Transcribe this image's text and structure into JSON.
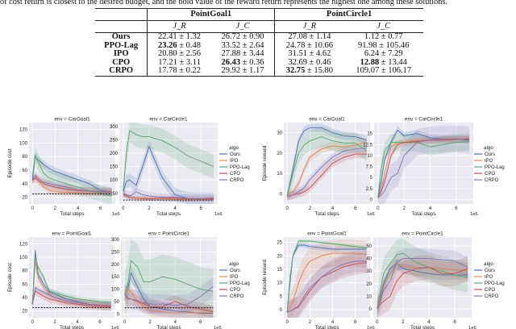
{
  "caption": "of cost return is closest to the desired budget, and the bold value of the reward return represents the highest one among these solutions.",
  "table": {
    "envs": [
      "PointGoal1",
      "PointCircle1"
    ],
    "metrics": [
      "J_R",
      "J_C",
      "J_R",
      "J_C"
    ],
    "rows": [
      {
        "algo": "Ours",
        "cells": [
          {
            "v": "22.41",
            "pm": "± 1.32",
            "bold": false
          },
          {
            "v": "26.72",
            "pm": "± 0.90",
            "bold": false
          },
          {
            "v": "27.08",
            "pm": "± 1.14",
            "bold": false
          },
          {
            "v": "1.12",
            "pm": "± 0.77",
            "bold": false
          }
        ]
      },
      {
        "algo": "PPO-Lag",
        "cells": [
          {
            "v": "23.26",
            "pm": "± 0.48",
            "bold": true
          },
          {
            "v": "33.52",
            "pm": "± 2.64",
            "bold": false
          },
          {
            "v": "24.78",
            "pm": "± 10.66",
            "bold": false
          },
          {
            "v": "91.98",
            "pm": "± 105.46",
            "bold": false
          }
        ]
      },
      {
        "algo": "IPO",
        "cells": [
          {
            "v": "20.80",
            "pm": "± 2.56",
            "bold": false
          },
          {
            "v": "27.88",
            "pm": "± 3.44",
            "bold": false
          },
          {
            "v": "31.51",
            "pm": "± 4.62",
            "bold": false
          },
          {
            "v": "6.24",
            "pm": "± 7.29",
            "bold": false
          }
        ]
      },
      {
        "algo": "CPO",
        "cells": [
          {
            "v": "17.21",
            "pm": "± 3.11",
            "bold": false
          },
          {
            "v": "26.43",
            "pm": "± 0.36",
            "bold": true
          },
          {
            "v": "32.69",
            "pm": "± 0.46",
            "bold": false
          },
          {
            "v": "12.88",
            "pm": "± 13.44",
            "bold": true
          }
        ]
      },
      {
        "algo": "CRPO",
        "cells": [
          {
            "v": "17.78",
            "pm": "± 0.22",
            "bold": false
          },
          {
            "v": "29.92",
            "pm": "± 1.17",
            "bold": false
          },
          {
            "v": "32.75",
            "pm": "± 15.80",
            "bold": true
          },
          {
            "v": "109.07",
            "pm": "± 106.17",
            "bold": false
          }
        ]
      }
    ]
  },
  "legend": {
    "title": "algo",
    "entries": [
      "Ours",
      "IPO",
      "PPO-Lag",
      "CPO",
      "CRPO"
    ]
  },
  "colors": {
    "Ours": "#4c72b0",
    "IPO": "#dd8452",
    "PPO-Lag": "#55a868",
    "CPO": "#c44e52",
    "CRPO": "#8172b3",
    "background": "#eaeaf2",
    "budget": "#000000"
  },
  "chart_data": [
    {
      "type": "line",
      "title": "env = CarGoal1",
      "xlabel": "Total steps",
      "ylabel": "Episode cost",
      "x_scale_label": "1e6",
      "xlim": [
        -0.3,
        7.3
      ],
      "ylim": [
        10,
        130
      ],
      "xticks": [
        0,
        2,
        4,
        6
      ],
      "yticks": [
        20,
        40,
        60,
        80,
        100,
        120
      ],
      "grid": true,
      "budget": 25,
      "x": [
        0,
        0.25,
        0.5,
        1,
        1.5,
        2,
        3,
        4,
        5,
        6,
        7
      ],
      "series": [
        {
          "name": "Ours",
          "values": [
            45,
            80,
            75,
            68,
            62,
            58,
            52,
            46,
            40,
            30,
            27
          ],
          "band": 6
        },
        {
          "name": "IPO",
          "values": [
            45,
            50,
            45,
            35,
            30,
            28,
            27,
            27,
            27,
            27,
            27
          ],
          "band": 5
        },
        {
          "name": "PPO-Lag",
          "values": [
            50,
            82,
            72,
            55,
            48,
            45,
            40,
            35,
            30,
            26,
            22
          ],
          "band": 12
        },
        {
          "name": "CPO",
          "values": [
            45,
            48,
            45,
            40,
            37,
            35,
            32,
            30,
            29,
            28,
            28
          ],
          "band": 6
        },
        {
          "name": "CRPO",
          "values": [
            45,
            52,
            48,
            42,
            40,
            38,
            35,
            31,
            29,
            28,
            27
          ],
          "band": 5
        }
      ]
    },
    {
      "type": "line",
      "title": "env = CarCircle1",
      "xlabel": "Total steps",
      "ylabel": "",
      "x_scale_label": "1e6",
      "xlim": [
        -0.3,
        7.3
      ],
      "ylim": [
        10,
        315
      ],
      "xticks": [
        0,
        2,
        4,
        6
      ],
      "yticks": [
        50,
        100,
        150,
        200,
        250,
        300
      ],
      "grid": true,
      "budget": 25,
      "x": [
        0,
        0.25,
        0.5,
        1,
        1.5,
        2,
        3,
        4,
        5,
        6,
        7
      ],
      "series": [
        {
          "name": "Ours",
          "values": [
            55,
            95,
            100,
            80,
            150,
            225,
            110,
            45,
            30,
            28,
            28
          ],
          "band": 25
        },
        {
          "name": "IPO",
          "values": [
            50,
            40,
            35,
            32,
            32,
            30,
            30,
            28,
            28,
            27,
            27
          ],
          "band": 8
        },
        {
          "name": "PPO-Lag",
          "values": [
            60,
            200,
            285,
            270,
            262,
            262,
            248,
            222,
            190,
            170,
            150
          ],
          "band": 45
        },
        {
          "name": "CPO",
          "values": [
            45,
            40,
            35,
            32,
            30,
            30,
            32,
            32,
            30,
            30,
            32
          ],
          "band": 8
        },
        {
          "name": "CRPO",
          "values": [
            50,
            45,
            40,
            55,
            45,
            40,
            35,
            35,
            30,
            30,
            30
          ],
          "band": 15
        }
      ]
    },
    {
      "type": "line",
      "title": "env = CarGoal1",
      "xlabel": "Total steps",
      "ylabel": "Episode reward",
      "x_scale_label": "1e6",
      "xlim": [
        -0.3,
        7.3
      ],
      "ylim": [
        -5,
        35
      ],
      "xticks": [
        0,
        2,
        4,
        6
      ],
      "yticks": [
        0,
        10,
        20,
        30
      ],
      "grid": true,
      "x": [
        0,
        0.25,
        0.5,
        1,
        1.5,
        2,
        3,
        4,
        5,
        6,
        7
      ],
      "series": [
        {
          "name": "Ours",
          "values": [
            -1,
            5,
            12,
            26,
            31,
            32.5,
            32.5,
            30,
            28.5,
            28,
            26.5
          ],
          "band": 2
        },
        {
          "name": "IPO",
          "values": [
            -1,
            0,
            1,
            5,
            12,
            18,
            22,
            23.5,
            23,
            24,
            25.5
          ],
          "band": 2
        },
        {
          "name": "PPO-Lag",
          "values": [
            -1,
            4,
            10,
            20,
            24,
            26,
            28,
            26,
            25,
            25,
            21
          ],
          "band": 5
        },
        {
          "name": "CPO",
          "values": [
            -1,
            -1,
            -0.5,
            0,
            1,
            3,
            9,
            15,
            18,
            19.5,
            19.5
          ],
          "band": 2
        },
        {
          "name": "CRPO",
          "values": [
            -1,
            -1,
            -0.5,
            1,
            3,
            7,
            13,
            18,
            21,
            22,
            22.5
          ],
          "band": 2
        }
      ]
    },
    {
      "type": "line",
      "title": "env = CarCircle1",
      "xlabel": "Total steps",
      "ylabel": "",
      "x_scale_label": "1e6",
      "xlim": [
        -0.3,
        7.3
      ],
      "ylim": [
        -1,
        17.5
      ],
      "xticks": [
        0,
        2,
        4,
        6
      ],
      "yticks": [
        0,
        2.5,
        5,
        7.5,
        10,
        12.5,
        15
      ],
      "grid": true,
      "x": [
        0,
        0.25,
        0.5,
        1,
        1.5,
        2,
        3,
        4,
        5,
        6,
        7
      ],
      "series": [
        {
          "name": "Ours",
          "values": [
            0.5,
            4,
            9,
            13,
            15.8,
            14.5,
            15,
            14,
            13.8,
            13.8,
            13.5
          ],
          "band": 0.8
        },
        {
          "name": "IPO",
          "values": [
            0.5,
            2,
            6,
            12,
            13,
            13,
            13.5,
            13.5,
            13.8,
            13.8,
            13.8
          ],
          "band": 0.6
        },
        {
          "name": "PPO-Lag",
          "values": [
            0.5,
            7,
            11,
            13,
            13,
            13,
            13,
            12,
            12.5,
            13,
            13.2
          ],
          "band": 2
        },
        {
          "name": "CPO",
          "values": [
            0.5,
            2,
            4,
            10,
            12.5,
            13,
            13.2,
            13.5,
            13.5,
            13.7,
            13.8
          ],
          "band": 0.8
        },
        {
          "name": "CRPO",
          "values": [
            0.5,
            1,
            2,
            5,
            6,
            10,
            13,
            13.6,
            13.8,
            13.8,
            13.6
          ],
          "band": 3
        }
      ]
    },
    {
      "type": "line",
      "title": "env = PointGoal1",
      "xlabel": "Total steps",
      "ylabel": "Episode cost",
      "x_scale_label": "1e6",
      "xlim": [
        -0.3,
        7.3
      ],
      "ylim": [
        10,
        130
      ],
      "xticks": [
        0,
        2,
        4,
        6
      ],
      "yticks": [
        20,
        40,
        60,
        80,
        100,
        120
      ],
      "grid": true,
      "budget": 25,
      "x": [
        0,
        0.25,
        0.5,
        1,
        1.5,
        2,
        3,
        4,
        5,
        6,
        7
      ],
      "series": [
        {
          "name": "Ours",
          "values": [
            30,
            110,
            75,
            60,
            48,
            45,
            38,
            34,
            30,
            29,
            28
          ],
          "band": 5
        },
        {
          "name": "IPO",
          "values": [
            30,
            95,
            70,
            55,
            45,
            40,
            35,
            32,
            30,
            28,
            27
          ],
          "band": 6
        },
        {
          "name": "PPO-Lag",
          "values": [
            30,
            100,
            85,
            70,
            50,
            47,
            42,
            38,
            36,
            34,
            33
          ],
          "band": 4
        },
        {
          "name": "CPO",
          "values": [
            30,
            50,
            47,
            42,
            38,
            36,
            32,
            30,
            28,
            27,
            26
          ],
          "band": 6
        },
        {
          "name": "CRPO",
          "values": [
            30,
            55,
            52,
            48,
            44,
            40,
            35,
            32,
            30,
            29,
            28
          ],
          "band": 4
        }
      ]
    },
    {
      "type": "line",
      "title": "env = PointCircle1",
      "xlabel": "Total steps",
      "ylabel": "",
      "x_scale_label": "1e6",
      "xlim": [
        -0.3,
        7.3
      ],
      "ylim": [
        -15,
        310
      ],
      "xticks": [
        0,
        2,
        4,
        6
      ],
      "yticks": [
        0,
        50,
        100,
        150,
        200,
        250,
        300
      ],
      "grid": true,
      "budget": 25,
      "x": [
        0,
        0.25,
        0.5,
        1,
        1.5,
        2,
        3,
        4,
        5,
        6,
        7
      ],
      "series": [
        {
          "name": "Ours",
          "values": [
            80,
            100,
            165,
            110,
            60,
            30,
            20,
            12,
            8,
            3,
            2
          ],
          "band": 30
        },
        {
          "name": "IPO",
          "values": [
            80,
            100,
            90,
            50,
            30,
            15,
            8,
            5,
            5,
            5,
            8
          ],
          "band": 25
        },
        {
          "name": "PPO-Lag",
          "values": [
            80,
            120,
            215,
            190,
            130,
            130,
            150,
            140,
            120,
            100,
            92
          ],
          "band": 90
        },
        {
          "name": "CPO",
          "values": [
            80,
            60,
            60,
            50,
            40,
            30,
            30,
            50,
            30,
            20,
            10
          ],
          "band": 25
        },
        {
          "name": "CRPO",
          "values": [
            80,
            65,
            60,
            55,
            45,
            40,
            40,
            35,
            40,
            70,
            110
          ],
          "band": 40
        }
      ]
    },
    {
      "type": "line",
      "title": "env = PointGoal1",
      "xlabel": "Total steps",
      "ylabel": "Episode reward",
      "x_scale_label": "1e6",
      "xlim": [
        -0.3,
        7.3
      ],
      "ylim": [
        -3,
        27
      ],
      "xticks": [
        0,
        2,
        4,
        6
      ],
      "yticks": [
        0,
        5,
        10,
        15,
        20,
        25
      ],
      "grid": true,
      "x": [
        0,
        0.25,
        0.5,
        1,
        1.5,
        2,
        3,
        4,
        5,
        6,
        7
      ],
      "series": [
        {
          "name": "Ours",
          "values": [
            -1,
            10,
            20,
            24,
            24,
            23.5,
            23,
            22.5,
            22.5,
            22.5,
            22.5
          ],
          "band": 1
        },
        {
          "name": "IPO",
          "values": [
            -1,
            1,
            3,
            10,
            15,
            18,
            20,
            21,
            21,
            21,
            20.5
          ],
          "band": 5
        },
        {
          "name": "PPO-Lag",
          "values": [
            -1,
            12,
            20,
            25.5,
            25.5,
            25.5,
            25,
            24.5,
            24,
            23.5,
            23
          ],
          "band": 0.6
        },
        {
          "name": "CPO",
          "values": [
            -1,
            -0.5,
            0,
            1,
            4,
            7,
            12,
            14,
            16,
            17,
            17.5
          ],
          "band": 4
        },
        {
          "name": "CRPO",
          "values": [
            -1,
            -0.5,
            0,
            1.5,
            5,
            8,
            12,
            15,
            17,
            18,
            18
          ],
          "band": 4
        }
      ]
    },
    {
      "type": "line",
      "title": "env = PointCircle1",
      "xlabel": "Total steps",
      "ylabel": "",
      "x_scale_label": "1e6",
      "xlim": [
        -0.3,
        7.3
      ],
      "ylim": [
        -7,
        57
      ],
      "xticks": [
        0,
        2,
        4,
        6
      ],
      "yticks": [
        0,
        10,
        20,
        30,
        40,
        50
      ],
      "grid": true,
      "x": [
        0,
        0.25,
        0.5,
        1,
        1.5,
        2,
        3,
        4,
        5,
        6,
        7
      ],
      "series": [
        {
          "name": "Ours",
          "values": [
            0,
            10,
            20,
            32,
            36,
            32,
            30,
            28,
            27,
            27,
            27
          ],
          "band": 4
        },
        {
          "name": "IPO",
          "values": [
            0,
            8,
            18,
            28,
            36,
            34,
            32,
            33,
            32,
            31,
            30
          ],
          "band": 6
        },
        {
          "name": "PPO-Lag",
          "values": [
            0,
            15,
            28,
            36,
            43,
            44,
            37,
            33,
            30,
            27,
            25
          ],
          "band": 12
        },
        {
          "name": "CPO",
          "values": [
            0,
            4,
            6,
            10,
            22,
            28,
            32,
            33,
            28,
            28,
            32
          ],
          "band": 10
        },
        {
          "name": "CRPO",
          "values": [
            0,
            6,
            15,
            22,
            37,
            40,
            40,
            40,
            39,
            38,
            33
          ],
          "band": 8
        }
      ]
    }
  ]
}
